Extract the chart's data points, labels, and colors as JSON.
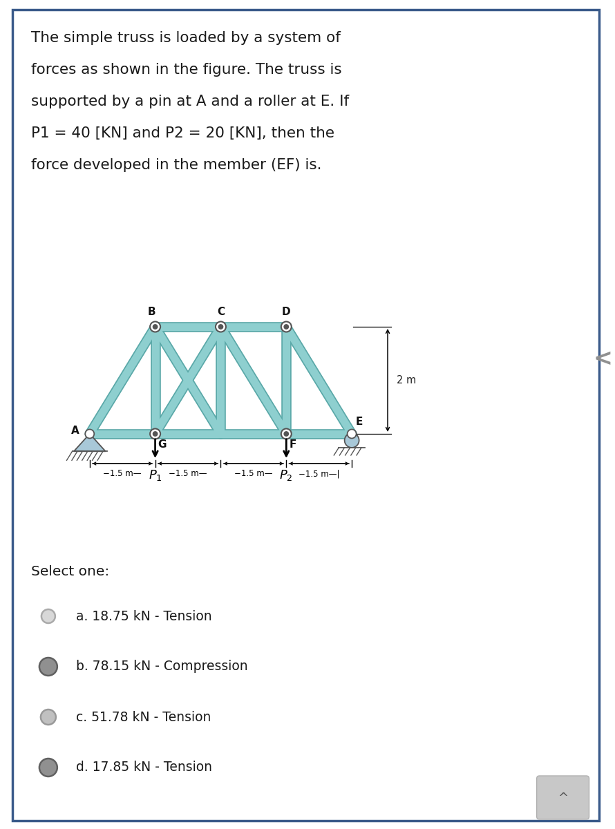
{
  "question_text_lines": [
    "The simple truss is loaded by a system of",
    "forces as shown in the figure. The truss is",
    "supported by a pin at A and a roller at E. If",
    "P1 = 40 [KN] and P2 = 20 [KN], then the",
    "force developed in the member (EF) is."
  ],
  "select_one": "Select one:",
  "options": [
    "a. 18.75 kN - Tension",
    "b. 78.15 kN - Compression",
    "c. 51.78 kN - Tension",
    "d. 17.85 kN - Tension"
  ],
  "option_circle_sizes": [
    0.1,
    0.13,
    0.11,
    0.13
  ],
  "option_circle_face": [
    "#d8d8d8",
    "#909090",
    "#c0c0c0",
    "#909090"
  ],
  "option_circle_edge": [
    "#aaaaaa",
    "#606060",
    "#999999",
    "#606060"
  ],
  "truss_fill": "#8ecfcf",
  "truss_edge": "#5aa8a8",
  "truss_lw": 8.0,
  "background_color": "#ffffff",
  "card_border": "#3a5a8a",
  "text_color": "#1a1a1a",
  "node_label_color": "#111111",
  "dim_color": "#222222",
  "support_fill": "#a8c8d8",
  "support_edge": "#555555"
}
